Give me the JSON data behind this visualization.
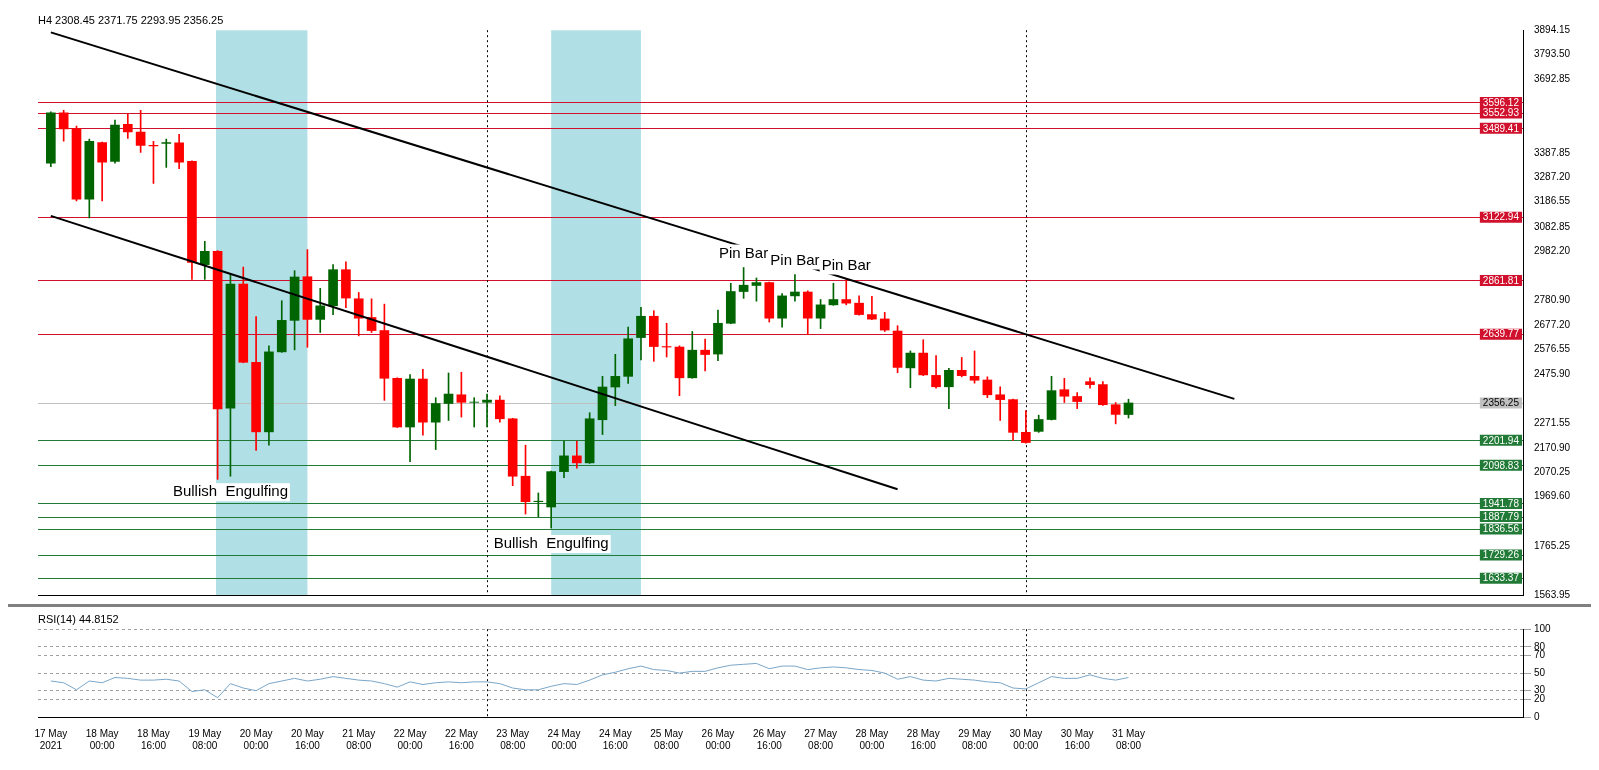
{
  "chart_data": [
    {
      "type": "candlestick",
      "title": "H4 2308.45 2371.75 2293.95 2356.25",
      "x": [
        "2021-05-17T08:00",
        "2021-05-17T12:00",
        "2021-05-17T16:00",
        "2021-05-17T20:00",
        "2021-05-18T00:00",
        "2021-05-18T04:00",
        "2021-05-18T08:00",
        "2021-05-18T12:00",
        "2021-05-18T16:00",
        "2021-05-18T20:00",
        "2021-05-19T00:00",
        "2021-05-19T04:00",
        "2021-05-19T08:00",
        "2021-05-19T12:00",
        "2021-05-19T16:00",
        "2021-05-19T20:00",
        "2021-05-20T00:00",
        "2021-05-20T04:00",
        "2021-05-20T08:00",
        "2021-05-20T12:00",
        "2021-05-20T16:00",
        "2021-05-20T20:00",
        "2021-05-21T00:00",
        "2021-05-21T04:00",
        "2021-05-21T08:00",
        "2021-05-21T12:00",
        "2021-05-21T16:00",
        "2021-05-21T20:00",
        "2021-05-22T00:00",
        "2021-05-22T04:00",
        "2021-05-22T08:00",
        "2021-05-22T12:00",
        "2021-05-22T16:00",
        "2021-05-22T20:00",
        "2021-05-23T00:00",
        "2021-05-23T04:00",
        "2021-05-23T08:00",
        "2021-05-23T12:00",
        "2021-05-23T16:00",
        "2021-05-23T20:00",
        "2021-05-24T00:00",
        "2021-05-24T04:00",
        "2021-05-24T08:00",
        "2021-05-24T12:00",
        "2021-05-24T16:00",
        "2021-05-24T20:00",
        "2021-05-25T00:00",
        "2021-05-25T04:00",
        "2021-05-25T08:00",
        "2021-05-25T12:00",
        "2021-05-25T16:00",
        "2021-05-25T20:00",
        "2021-05-26T00:00",
        "2021-05-26T04:00",
        "2021-05-26T08:00",
        "2021-05-26T12:00",
        "2021-05-26T16:00",
        "2021-05-26T20:00",
        "2021-05-27T00:00",
        "2021-05-27T04:00",
        "2021-05-27T08:00",
        "2021-05-27T12:00",
        "2021-05-27T16:00",
        "2021-05-27T20:00",
        "2021-05-28T00:00",
        "2021-05-28T04:00",
        "2021-05-28T08:00",
        "2021-05-28T12:00",
        "2021-05-28T16:00",
        "2021-05-28T20:00",
        "2021-05-29T00:00",
        "2021-05-29T04:00",
        "2021-05-29T08:00",
        "2021-05-29T12:00",
        "2021-05-29T16:00",
        "2021-05-29T20:00",
        "2021-05-30T00:00",
        "2021-05-30T04:00",
        "2021-05-30T08:00",
        "2021-05-30T12:00",
        "2021-05-30T16:00",
        "2021-05-30T20:00",
        "2021-05-31T00:00",
        "2021-05-31T04:00",
        "2021-05-31T08:00"
      ],
      "ohlc": [
        [
          3346,
          3557,
          3331,
          3553
        ],
        [
          3553,
          3564,
          3436,
          3487
        ],
        [
          3487,
          3499,
          3190,
          3197
        ],
        [
          3197,
          3445,
          3120,
          3436
        ],
        [
          3430,
          3433,
          3190,
          3350
        ],
        [
          3353,
          3523,
          3346,
          3503
        ],
        [
          3506,
          3547,
          3448,
          3474
        ],
        [
          3474,
          3564,
          3390,
          3419
        ],
        [
          3419,
          3436,
          3262,
          3417
        ],
        [
          3427,
          3445,
          3328,
          3430
        ],
        [
          3429,
          3465,
          3323,
          3350
        ],
        [
          3353,
          3355,
          2866,
          2936
        ],
        [
          2927,
          3023,
          2866,
          2982
        ],
        [
          2982,
          2985,
          2041,
          2332
        ],
        [
          2335,
          2888,
          2054,
          2847
        ],
        [
          2847,
          2917,
          2522,
          2524
        ],
        [
          2524,
          2713,
          2160,
          2237
        ],
        [
          2237,
          2592,
          2182,
          2567
        ],
        [
          2567,
          2778,
          2565,
          2697
        ],
        [
          2697,
          2902,
          2575,
          2876
        ],
        [
          2877,
          2989,
          2586,
          2701
        ],
        [
          2701,
          2829,
          2647,
          2757
        ],
        [
          2757,
          2927,
          2720,
          2906
        ],
        [
          2906,
          2938,
          2749,
          2789
        ],
        [
          2786,
          2812,
          2633,
          2706
        ],
        [
          2709,
          2786,
          2647,
          2655
        ],
        [
          2655,
          2764,
          2367,
          2458
        ],
        [
          2458,
          2460,
          2255,
          2257
        ],
        [
          2257,
          2473,
          2114,
          2455
        ],
        [
          2455,
          2495,
          2223,
          2277
        ],
        [
          2277,
          2378,
          2164,
          2354
        ],
        [
          2354,
          2480,
          2284,
          2393
        ],
        [
          2390,
          2483,
          2298,
          2359
        ],
        [
          2359,
          2378,
          2257,
          2360
        ],
        [
          2359,
          2393,
          2257,
          2368
        ],
        [
          2368,
          2386,
          2277,
          2291
        ],
        [
          2291,
          2293,
          2015,
          2054
        ],
        [
          2054,
          2182,
          1898,
          1949
        ],
        [
          1949,
          1985,
          1887,
          1951
        ],
        [
          1927,
          2075,
          1840,
          2073
        ],
        [
          2073,
          2199,
          2048,
          2138
        ],
        [
          2138,
          2199,
          2087,
          2109
        ],
        [
          2109,
          2316,
          2107,
          2291
        ],
        [
          2287,
          2466,
          2226,
          2422
        ],
        [
          2422,
          2557,
          2345,
          2466
        ],
        [
          2466,
          2669,
          2437,
          2621
        ],
        [
          2626,
          2751,
          2534,
          2714
        ],
        [
          2714,
          2737,
          2528,
          2589
        ],
        [
          2589,
          2685,
          2546,
          2587
        ],
        [
          2587,
          2592,
          2386,
          2460
        ],
        [
          2460,
          2651,
          2458,
          2574
        ],
        [
          2574,
          2620,
          2488,
          2556
        ],
        [
          2558,
          2739,
          2531,
          2685
        ],
        [
          2685,
          2850,
          2683,
          2816
        ],
        [
          2816,
          2915,
          2788,
          2842
        ],
        [
          2841,
          2872,
          2776,
          2853
        ],
        [
          2853,
          2855,
          2690,
          2706
        ],
        [
          2706,
          2808,
          2669,
          2798
        ],
        [
          2798,
          2886,
          2776,
          2814
        ],
        [
          2814,
          2819,
          2638,
          2706
        ],
        [
          2706,
          2783,
          2663,
          2761
        ],
        [
          2761,
          2850,
          2759,
          2783
        ],
        [
          2783,
          2866,
          2761,
          2768
        ],
        [
          2768,
          2798,
          2718,
          2721
        ],
        [
          2721,
          2796,
          2700,
          2702
        ],
        [
          2703,
          2730,
          2651,
          2657
        ],
        [
          2653,
          2675,
          2481,
          2503
        ],
        [
          2501,
          2571,
          2419,
          2562
        ],
        [
          2562,
          2617,
          2469,
          2472
        ],
        [
          2470,
          2552,
          2417,
          2423
        ],
        [
          2423,
          2499,
          2333,
          2491
        ],
        [
          2491,
          2544,
          2464,
          2469
        ],
        [
          2466,
          2571,
          2438,
          2450
        ],
        [
          2451,
          2464,
          2378,
          2390
        ],
        [
          2390,
          2423,
          2284,
          2370
        ],
        [
          2370,
          2372,
          2202,
          2235
        ],
        [
          2235,
          2325,
          2190,
          2193
        ],
        [
          2239,
          2306,
          2235,
          2288
        ],
        [
          2288,
          2466,
          2286,
          2407
        ],
        [
          2411,
          2458,
          2358,
          2384
        ],
        [
          2383,
          2399,
          2333,
          2362
        ],
        [
          2444,
          2460,
          2417,
          2432
        ],
        [
          2432,
          2444,
          2346,
          2349
        ],
        [
          2349,
          2358,
          2270,
          2309
        ],
        [
          2308.45,
          2371.75,
          2293.95,
          2356.25
        ]
      ],
      "colors": [
        "#006400",
        "#ff0000",
        "#ff0000",
        "#006400",
        "#ff0000",
        "#006400",
        "#ff0000",
        "#ff0000",
        "#ff0000",
        "#006400",
        "#ff0000",
        "#ff0000",
        "#006400",
        "#ff0000",
        "#006400",
        "#ff0000",
        "#ff0000",
        "#006400",
        "#006400",
        "#006400",
        "#ff0000",
        "#006400",
        "#006400",
        "#ff0000",
        "#ff0000",
        "#ff0000",
        "#ff0000",
        "#ff0000",
        "#006400",
        "#ff0000",
        "#006400",
        "#006400",
        "#ff0000",
        "#006400",
        "#006400",
        "#ff0000",
        "#ff0000",
        "#ff0000",
        "#006400",
        "#006400",
        "#006400",
        "#ff0000",
        "#006400",
        "#006400",
        "#006400",
        "#006400",
        "#006400",
        "#ff0000",
        "#ff0000",
        "#ff0000",
        "#006400",
        "#ff0000",
        "#006400",
        "#006400",
        "#006400",
        "#006400",
        "#ff0000",
        "#006400",
        "#006400",
        "#ff0000",
        "#006400",
        "#006400",
        "#ff0000",
        "#ff0000",
        "#ff0000",
        "#ff0000",
        "#ff0000",
        "#006400",
        "#ff0000",
        "#ff0000",
        "#006400",
        "#ff0000",
        "#ff0000",
        "#ff0000",
        "#ff0000",
        "#ff0000",
        "#ff0000",
        "#006400",
        "#006400",
        "#ff0000",
        "#ff0000",
        "#ff0000",
        "#ff0000",
        "#ff0000",
        "#006400"
      ],
      "series": [
        {
          "type": "line",
          "x": [
            "2021-05-17T08:00",
            "2021-06-01T17:00"
          ],
          "values": [
            3885,
            2373
          ],
          "color": "#000000"
        },
        {
          "type": "line",
          "x": [
            "2021-05-17T08:00",
            "2021-05-28T08:00"
          ],
          "values": [
            3128,
            2000
          ],
          "color": "#000000"
        }
      ],
      "xlim": [
        "2021-05-17T04:00",
        "2021-06-05T11:00"
      ],
      "ylim": [
        1563.95,
        3894.15
      ],
      "yticks": [
        3894.15,
        {
          "value": 3793.5,
          "label": "3793.50"
        },
        3692.85,
        3387.85,
        {
          "value": 3287.2,
          "label": "3287.20"
        },
        3186.55,
        3082.85,
        {
          "value": 2982.2,
          "label": "2982.20"
        },
        {
          "value": 2780.9,
          "label": "2780.90"
        },
        {
          "value": 2677.2,
          "label": "2677.20"
        },
        2576.55,
        {
          "value": 2475.9,
          "label": "2475.90"
        },
        2271.55,
        {
          "value": 2170.9,
          "label": "2170.90"
        },
        2070.25,
        {
          "value": 1969.6,
          "label": "1969.60"
        },
        1765.25,
        1563.95
      ],
      "tick_labels": "y",
      "ref_lines": [
        {
          "axis": "y",
          "value": 3596.12,
          "label": "3596.12",
          "color": "#d0102c"
        },
        {
          "axis": "y",
          "value": 3552.93,
          "label": "3552.93",
          "color": "#d0102c"
        },
        {
          "axis": "y",
          "value": 3489.41,
          "label": "3489.41",
          "color": "#d0102c"
        },
        {
          "axis": "y",
          "value": 3122.94,
          "label": "3122.94",
          "color": "#d0102c"
        },
        {
          "axis": "y",
          "value": 2861.81,
          "label": "2861.81",
          "color": "#d0102c"
        },
        {
          "axis": "y",
          "value": 2639.77,
          "label": "2639.77",
          "color": "#d0102c"
        },
        {
          "axis": "y",
          "value": 2356.25,
          "label": "2356.25",
          "color": "#c0c0c0"
        },
        {
          "axis": "y",
          "value": 2201.94,
          "label": "2201.94",
          "color": "#217a36"
        },
        {
          "axis": "y",
          "value": 2098.83,
          "label": "2098.83",
          "color": "#217a36"
        },
        {
          "axis": "y",
          "value": 1941.78,
          "label": "1941.78",
          "color": "#217a36"
        },
        {
          "axis": "y",
          "value": 1887.79,
          "label": "1887.79",
          "color": "#217a36"
        },
        {
          "axis": "y",
          "value": 1836.56,
          "label": "1836.56",
          "color": "#217a36"
        },
        {
          "axis": "y",
          "value": 1729.26,
          "label": "1729.26",
          "color": "#217a36"
        },
        {
          "axis": "y",
          "value": 1633.37,
          "label": "1633.37",
          "color": "#217a36"
        },
        {
          "axis": "x",
          "value": "2021-05-23T00:00",
          "color": "#000000",
          "line_style": "dotted"
        },
        {
          "axis": "x",
          "value": "2021-05-30T00:00",
          "color": "#000000",
          "line_style": "dotted"
        }
      ],
      "bands": [
        {
          "axis": "x",
          "from": "2021-05-19T11:30",
          "to": "2021-05-20T16:00",
          "color": "#b0e0e6"
        },
        {
          "axis": "x",
          "from": "2021-05-23T20:00",
          "to": "2021-05-25T00:00",
          "color": "#b0e0e6"
        }
      ],
      "annotations": [
        {
          "text": "Bullish  Engulfing",
          "x": "2021-05-19T16:00",
          "y": 2054
        },
        {
          "text": "Bullish  Engulfing",
          "x": "2021-05-23T20:00",
          "y": 1840
        },
        {
          "text": "Pin Bar",
          "x": "2021-05-26T08:00",
          "y": 2915
        },
        {
          "text": "Pin Bar",
          "x": "2021-05-27T00:00",
          "y": 2886
        },
        {
          "text": "Pin Bar",
          "x": "2021-05-27T16:00",
          "y": 2866
        }
      ]
    },
    {
      "type": "line",
      "title": "RSI(14) 44.8152",
      "x": [
        "2021-05-17T08:00",
        "2021-05-17T12:00",
        "2021-05-17T16:00",
        "2021-05-17T20:00",
        "2021-05-18T00:00",
        "2021-05-18T04:00",
        "2021-05-18T08:00",
        "2021-05-18T12:00",
        "2021-05-18T16:00",
        "2021-05-18T20:00",
        "2021-05-19T00:00",
        "2021-05-19T04:00",
        "2021-05-19T08:00",
        "2021-05-19T12:00",
        "2021-05-19T16:00",
        "2021-05-19T20:00",
        "2021-05-20T00:00",
        "2021-05-20T04:00",
        "2021-05-20T08:00",
        "2021-05-20T12:00",
        "2021-05-20T16:00",
        "2021-05-20T20:00",
        "2021-05-21T00:00",
        "2021-05-21T04:00",
        "2021-05-21T08:00",
        "2021-05-21T12:00",
        "2021-05-21T16:00",
        "2021-05-21T20:00",
        "2021-05-22T00:00",
        "2021-05-22T04:00",
        "2021-05-22T08:00",
        "2021-05-22T12:00",
        "2021-05-22T16:00",
        "2021-05-22T20:00",
        "2021-05-23T00:00",
        "2021-05-23T04:00",
        "2021-05-23T08:00",
        "2021-05-23T12:00",
        "2021-05-23T16:00",
        "2021-05-23T20:00",
        "2021-05-24T00:00",
        "2021-05-24T04:00",
        "2021-05-24T08:00",
        "2021-05-24T12:00",
        "2021-05-24T16:00",
        "2021-05-24T20:00",
        "2021-05-25T00:00",
        "2021-05-25T04:00",
        "2021-05-25T08:00",
        "2021-05-25T12:00",
        "2021-05-25T16:00",
        "2021-05-25T20:00",
        "2021-05-26T00:00",
        "2021-05-26T04:00",
        "2021-05-26T08:00",
        "2021-05-26T12:00",
        "2021-05-26T16:00",
        "2021-05-26T20:00",
        "2021-05-27T00:00",
        "2021-05-27T04:00",
        "2021-05-27T08:00",
        "2021-05-27T12:00",
        "2021-05-27T16:00",
        "2021-05-27T20:00",
        "2021-05-28T00:00",
        "2021-05-28T04:00",
        "2021-05-28T08:00",
        "2021-05-28T12:00",
        "2021-05-28T16:00",
        "2021-05-28T20:00",
        "2021-05-29T00:00",
        "2021-05-29T04:00",
        "2021-05-29T08:00",
        "2021-05-29T12:00",
        "2021-05-29T16:00",
        "2021-05-29T20:00",
        "2021-05-30T00:00",
        "2021-05-30T04:00",
        "2021-05-30T08:00",
        "2021-05-30T12:00",
        "2021-05-30T16:00",
        "2021-05-30T20:00",
        "2021-05-31T00:00",
        "2021-05-31T04:00",
        "2021-05-31T08:00"
      ],
      "values": [
        41,
        39,
        31,
        41,
        39,
        45,
        44,
        42,
        42,
        43,
        41,
        29,
        31,
        22,
        38,
        33,
        30,
        38,
        41,
        44,
        41,
        43,
        46,
        44,
        42,
        41,
        38,
        34,
        40,
        37,
        39,
        40,
        39,
        40,
        40,
        38,
        33,
        31,
        31,
        35,
        38,
        37,
        42,
        48,
        51,
        55,
        58,
        54,
        53,
        50,
        52,
        52,
        56,
        59,
        60,
        61,
        55,
        58,
        58,
        54,
        56,
        57,
        56,
        54,
        53,
        50,
        43,
        46,
        42,
        41,
        44,
        43,
        42,
        40,
        39,
        33,
        32,
        39,
        46,
        44,
        44,
        48,
        44,
        42,
        45
      ],
      "color": "#7aa6c8",
      "xlim": [
        "2021-05-17T04:00",
        "2021-06-05T11:00"
      ],
      "xticks": [
        {
          "value": "2021-05-17T08:00",
          "label": "17 May 2021"
        },
        {
          "value": "2021-05-18T00:00",
          "label": "18 May 00:00"
        },
        {
          "value": "2021-05-18T16:00",
          "label": "18 May 16:00"
        },
        {
          "value": "2021-05-19T08:00",
          "label": "19 May 08:00"
        },
        {
          "value": "2021-05-20T00:00",
          "label": "20 May 00:00"
        },
        {
          "value": "2021-05-20T16:00",
          "label": "20 May 16:00"
        },
        {
          "value": "2021-05-21T08:00",
          "label": "21 May 08:00"
        },
        {
          "value": "2021-05-22T00:00",
          "label": "22 May 00:00"
        },
        {
          "value": "2021-05-22T16:00",
          "label": "22 May 16:00"
        },
        {
          "value": "2021-05-23T08:00",
          "label": "23 May 08:00"
        },
        {
          "value": "2021-05-24T00:00",
          "label": "24 May 00:00"
        },
        {
          "value": "2021-05-24T16:00",
          "label": "24 May 16:00"
        },
        {
          "value": "2021-05-25T08:00",
          "label": "25 May 08:00"
        },
        {
          "value": "2021-05-26T00:00",
          "label": "26 May 00:00"
        },
        {
          "value": "2021-05-26T16:00",
          "label": "26 May 16:00"
        },
        {
          "value": "2021-05-27T08:00",
          "label": "27 May 08:00"
        },
        {
          "value": "2021-05-28T00:00",
          "label": "28 May 00:00"
        },
        {
          "value": "2021-05-28T16:00",
          "label": "28 May 16:00"
        },
        {
          "value": "2021-05-29T08:00",
          "label": "29 May 08:00"
        },
        {
          "value": "2021-05-30T00:00",
          "label": "30 May 00:00"
        },
        {
          "value": "2021-05-30T16:00",
          "label": "30 May 16:00"
        },
        {
          "value": "2021-05-31T08:00",
          "label": "31 May 08:00"
        }
      ],
      "ylim": [
        0,
        100
      ],
      "yticks": [
        0,
        20,
        30,
        50,
        70,
        80,
        100
      ],
      "grid": "y",
      "ref_lines": [
        {
          "axis": "x",
          "value": "2021-05-23T00:00",
          "color": "#000000",
          "line_style": "dotted"
        },
        {
          "axis": "x",
          "value": "2021-05-30T00:00",
          "color": "#000000",
          "line_style": "dotted"
        }
      ]
    }
  ]
}
